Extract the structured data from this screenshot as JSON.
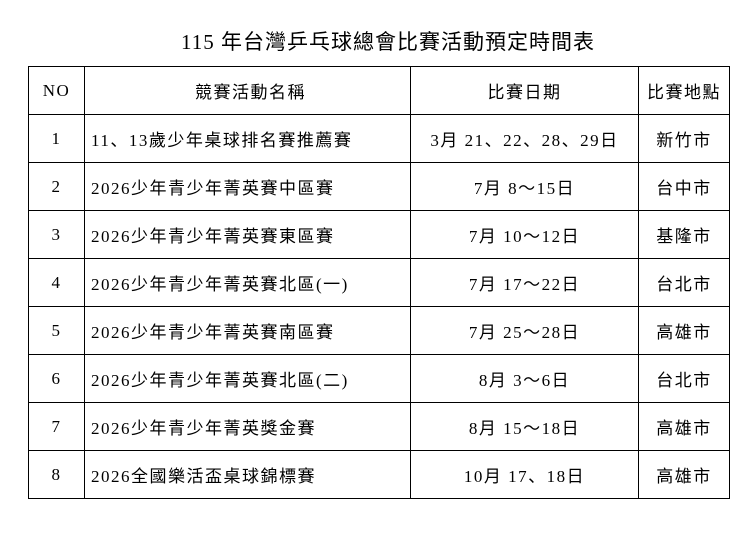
{
  "title": "115 年台灣乒乓球總會比賽活動預定時間表",
  "headers": [
    "NO",
    "競賽活動名稱",
    "比賽日期",
    "比賽地點"
  ],
  "rows": [
    {
      "no": "1",
      "name": "11、13歲少年桌球排名賽推薦賽",
      "date": "3月 21、22、28、29日",
      "place": "新竹市"
    },
    {
      "no": "2",
      "name": "2026少年青少年菁英賽中區賽",
      "date": "7月 8～15日",
      "place": "台中市"
    },
    {
      "no": "3",
      "name": "2026少年青少年菁英賽東區賽",
      "date": "7月  10～12日",
      "place": "基隆市"
    },
    {
      "no": "4",
      "name": "2026少年青少年菁英賽北區(一)",
      "date": "7月 17～22日",
      "place": "台北市"
    },
    {
      "no": "5",
      "name": "2026少年青少年菁英賽南區賽",
      "date": "7月 25～28日",
      "place": "高雄市"
    },
    {
      "no": "6",
      "name": "2026少年青少年菁英賽北區(二)",
      "date": "8月  3～6日",
      "place": "台北市"
    },
    {
      "no": "7",
      "name": "2026少年青少年菁英獎金賽",
      "date": "8月 15～18日",
      "place": "高雄市"
    },
    {
      "no": "8",
      "name": "2026全國樂活盃桌球錦標賽",
      "date": "10月 17、18日",
      "place": "高雄市"
    }
  ]
}
